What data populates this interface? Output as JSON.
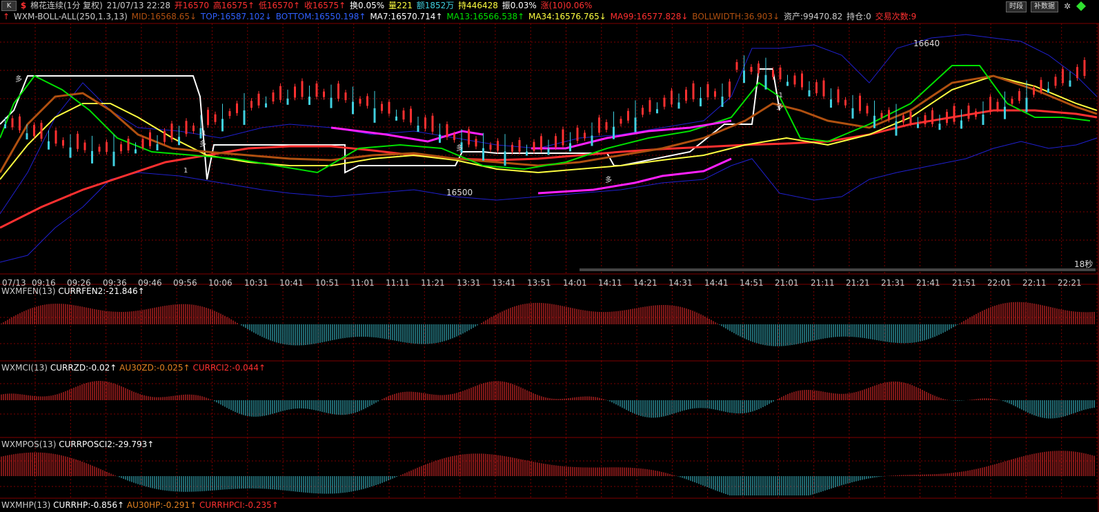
{
  "header": {
    "k_label": "K",
    "dollar": "$",
    "symbol": "棉花连续(1分 复权)",
    "datetime": "21/07/13 22:28",
    "open": "开16570",
    "high": "高16575↑",
    "low": "低16570↑",
    "close": "收16575↑",
    "turnover": "换0.05%",
    "volume": "量221",
    "amount": "额1852万",
    "hold": "持446428",
    "amplitude": "振0.03%",
    "change": "涨(10)0.06%"
  },
  "toolbar": {
    "timeshare_label": "时段",
    "supplement_label": "补数据"
  },
  "indicator": {
    "arrow": "↑",
    "name": "WXM-BOLL-ALL(250,1.3,13)",
    "mid": "MID:16568.65↓",
    "top": "TOP:16587.102↓",
    "bottom": "BOTTOM:16550.198↑",
    "ma7": "MA7:16570.714↑",
    "ma13": "MA13:16566.538↑",
    "ma34": "MA34:16576.765↓",
    "ma99": "MA99:16577.828↓",
    "bollwidth": "BOLLWIDTH:36.903↓",
    "assets": "资产:99470.82",
    "position": "持仓:0",
    "trades": "交易次数:9"
  },
  "annotations": {
    "high_price": "16640",
    "low_price": "16500",
    "countdown": "18秒",
    "signal_duo": "多",
    "signal_minus1": "-1",
    "signal_1": "1"
  },
  "x_axis": [
    "07/13",
    "09:16",
    "09:26",
    "09:36",
    "09:46",
    "09:56",
    "10:06",
    "10:31",
    "10:41",
    "10:51",
    "11:01",
    "11:11",
    "11:21",
    "13:31",
    "13:41",
    "13:51",
    "14:01",
    "14:11",
    "14:21",
    "14:31",
    "14:41",
    "14:51",
    "21:01",
    "21:11",
    "21:21",
    "21:31",
    "21:41",
    "21:51",
    "22:01",
    "22:11",
    "22:21"
  ],
  "panel_fen": {
    "name": "WXMFEN(13)",
    "value": "CURRFEN2:-21.846↑"
  },
  "panel_mci": {
    "name": "WXMCI(13)",
    "zd": "CURRZD:-0.02↑",
    "au": "AU30ZD:-0.025↑",
    "cci": "CURRCI2:-0.044↑"
  },
  "panel_pos": {
    "name": "WXMPOS(13)",
    "value": "CURRPOSCI2:-29.793↑"
  },
  "panel_hp": {
    "name": "WXMHP(13)",
    "value": "CURRHP:-0.856↑",
    "au": "AU30HP:-0.291↑",
    "ci": "CURRHPCI:-0.235↑"
  },
  "colors": {
    "red": "#ff3030",
    "green": "#00e000",
    "cyan": "#40d0e0",
    "yellow": "#ffff40",
    "white": "#ffffff",
    "magenta": "#ff20ff",
    "brown": "#b05010",
    "blue": "#2020d0",
    "grid": "#800000"
  }
}
